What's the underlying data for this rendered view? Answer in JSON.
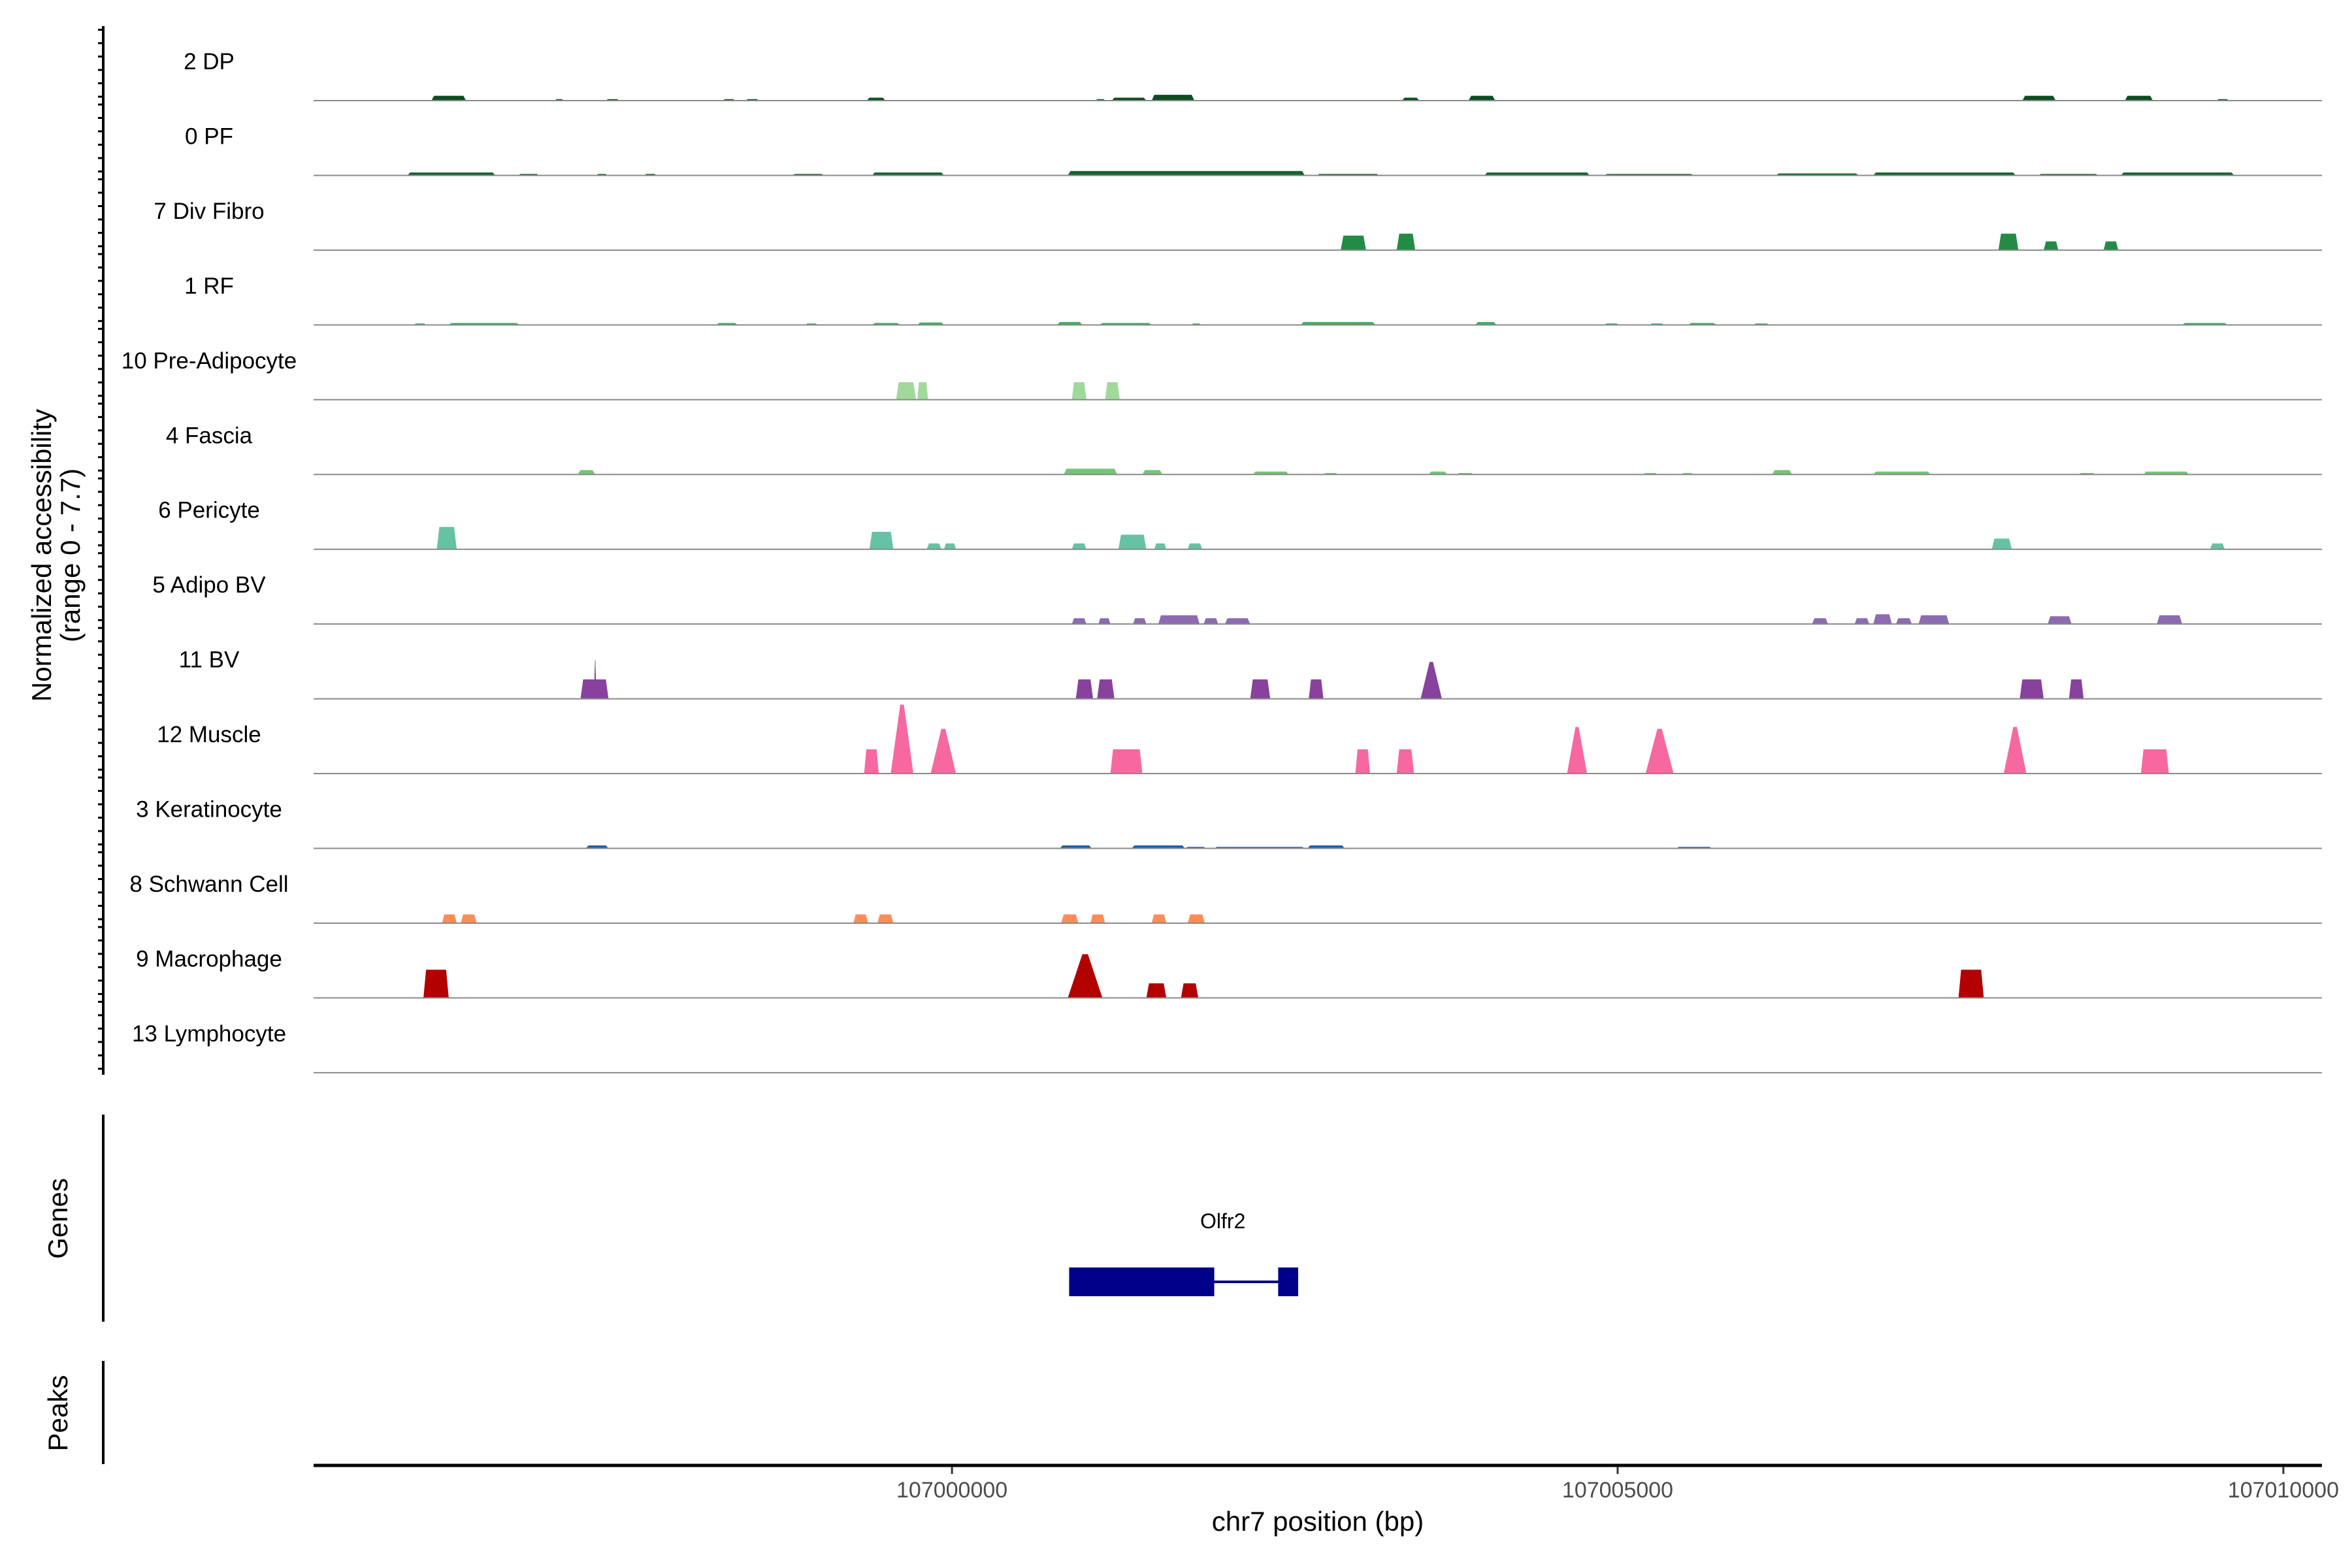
{
  "chart_data": {
    "type": "area",
    "title": "",
    "ylabel_line1": "Normalized accessibility",
    "ylabel_line2": "(range 0 - 7.7)",
    "xlabel": "chr7 position (bp)",
    "ylim": [
      0,
      7.7
    ],
    "xlim": [
      106995205,
      107010290
    ],
    "x_ticks": [
      107000000,
      107005000,
      107010000
    ],
    "x_tick_labels": [
      "107000000",
      "107005000",
      "107010000"
    ],
    "grid": false,
    "tracks": [
      {
        "name": "2 DP",
        "color": "#0b4d1f",
        "peaks": [
          [
            106996090,
            106996350,
            0.5
          ],
          [
            106997020,
            106997080,
            0.15
          ],
          [
            106997400,
            106997500,
            0.15
          ],
          [
            106998280,
            106998370,
            0.15
          ],
          [
            106998450,
            106998550,
            0.15
          ],
          [
            106999360,
            106999500,
            0.3
          ],
          [
            107001080,
            107001150,
            0.15
          ],
          [
            107001200,
            107001460,
            0.3
          ],
          [
            107001500,
            107001820,
            0.6
          ],
          [
            107003380,
            107003510,
            0.3
          ],
          [
            107003880,
            107004080,
            0.5
          ],
          [
            107008040,
            107008290,
            0.5
          ],
          [
            107008810,
            107009020,
            0.5
          ],
          [
            107009500,
            107009590,
            0.15
          ]
        ]
      },
      {
        "name": "0 PF",
        "color": "#17622c",
        "peaks": [
          [
            106995910,
            106996570,
            0.3
          ],
          [
            106996740,
            106996900,
            0.15
          ],
          [
            106997330,
            106997410,
            0.15
          ],
          [
            106997690,
            106997780,
            0.15
          ],
          [
            106998800,
            106999040,
            0.15
          ],
          [
            106999400,
            106999940,
            0.3
          ],
          [
            107000870,
            107002650,
            0.45
          ],
          [
            107002740,
            107003210,
            0.15
          ],
          [
            107004000,
            107004790,
            0.3
          ],
          [
            107004900,
            107005570,
            0.15
          ],
          [
            107006190,
            107006810,
            0.2
          ],
          [
            107006920,
            107007990,
            0.3
          ],
          [
            107008160,
            107008610,
            0.15
          ],
          [
            107008780,
            107009630,
            0.3
          ]
        ]
      },
      {
        "name": "7 Div Fibro",
        "color": "#238b45",
        "peaks": [
          [
            107002920,
            107003110,
            1.5
          ],
          [
            107003340,
            107003480,
            1.7
          ],
          [
            107007860,
            107008010,
            1.7
          ],
          [
            107008200,
            107008310,
            0.9
          ],
          [
            107008650,
            107008760,
            0.9
          ]
        ]
      },
      {
        "name": "1 RF",
        "color": "#41ab5d",
        "peaks": [
          [
            106995960,
            106996050,
            0.15
          ],
          [
            106996220,
            106996750,
            0.2
          ],
          [
            106998230,
            106998390,
            0.2
          ],
          [
            106998900,
            106998990,
            0.15
          ],
          [
            106999400,
            106999610,
            0.2
          ],
          [
            106999740,
            106999940,
            0.25
          ],
          [
            107000790,
            107000980,
            0.3
          ],
          [
            107001110,
            107001500,
            0.2
          ],
          [
            107001800,
            107001870,
            0.15
          ],
          [
            107002620,
            107003180,
            0.3
          ],
          [
            107003930,
            107004090,
            0.3
          ],
          [
            107004900,
            107005010,
            0.15
          ],
          [
            107005240,
            107005350,
            0.15
          ],
          [
            107005530,
            107005740,
            0.2
          ],
          [
            107006020,
            107006140,
            0.15
          ],
          [
            107009240,
            107009580,
            0.2
          ]
        ]
      },
      {
        "name": "10 Pre-Adipocyte",
        "color": "#a1d99b",
        "peaks": [
          [
            106999580,
            106999730,
            1.8
          ],
          [
            106999740,
            106999820,
            1.8
          ],
          [
            107000900,
            107001010,
            1.8
          ],
          [
            107001150,
            107001260,
            1.8
          ]
        ]
      },
      {
        "name": "4 Fascia",
        "color": "#74c476",
        "peaks": [
          [
            106997190,
            106997320,
            0.45
          ],
          [
            107000840,
            107001240,
            0.6
          ],
          [
            107001430,
            107001580,
            0.45
          ],
          [
            107002260,
            107002530,
            0.3
          ],
          [
            107002790,
            107002900,
            0.15
          ],
          [
            107003580,
            107003720,
            0.3
          ],
          [
            107003790,
            107003920,
            0.15
          ],
          [
            107005190,
            107005300,
            0.15
          ],
          [
            107005480,
            107005570,
            0.15
          ],
          [
            107006160,
            107006310,
            0.45
          ],
          [
            107006920,
            107007350,
            0.3
          ],
          [
            107008460,
            107008590,
            0.15
          ],
          [
            107008950,
            107009290,
            0.3
          ]
        ]
      },
      {
        "name": "6 Pericyte",
        "color": "#66c2a4",
        "peaks": [
          [
            106996130,
            106996280,
            2.3
          ],
          [
            106999380,
            106999560,
            1.8
          ],
          [
            106999810,
            106999920,
            0.6
          ],
          [
            106999940,
            107000030,
            0.6
          ],
          [
            107000900,
            107001010,
            0.6
          ],
          [
            107001250,
            107001460,
            1.5
          ],
          [
            107001520,
            107001610,
            0.6
          ],
          [
            107001770,
            107001880,
            0.6
          ],
          [
            107007810,
            107007960,
            1.1
          ],
          [
            107009450,
            107009560,
            0.6
          ]
        ]
      },
      {
        "name": "5 Adipo BV",
        "color": "#8c6bb1",
        "peaks": [
          [
            107000900,
            107001010,
            0.6
          ],
          [
            107001100,
            107001190,
            0.6
          ],
          [
            107001360,
            107001460,
            0.6
          ],
          [
            107001550,
            107001860,
            0.9
          ],
          [
            107001890,
            107002000,
            0.6
          ],
          [
            107002050,
            107002240,
            0.6
          ],
          [
            107006460,
            107006580,
            0.6
          ],
          [
            107006780,
            107006890,
            0.6
          ],
          [
            107006920,
            107007060,
            1.0
          ],
          [
            107007090,
            107007210,
            0.6
          ],
          [
            107007260,
            107007490,
            0.9
          ],
          [
            107008230,
            107008410,
            0.8
          ],
          [
            107009050,
            107009240,
            0.9
          ]
        ]
      },
      {
        "name": "11 BV",
        "color": "#88419d",
        "peaks": [
          [
            106997210,
            106997420,
            2.0
          ],
          [
            106997310,
            106997330,
            4.0
          ],
          [
            107000930,
            107001060,
            2.0
          ],
          [
            107001090,
            107001220,
            2.0
          ],
          [
            107002240,
            107002390,
            2.0
          ],
          [
            107002680,
            107002790,
            2.0
          ],
          [
            107003520,
            107003680,
            3.8
          ],
          [
            107008020,
            107008200,
            2.0
          ],
          [
            107008390,
            107008500,
            2.0
          ]
        ]
      },
      {
        "name": "12 Muscle",
        "color": "#f768a1",
        "peaks": [
          [
            106999340,
            106999450,
            2.5
          ],
          [
            106999540,
            106999710,
            7.1
          ],
          [
            106999840,
            107000030,
            4.6
          ],
          [
            107001190,
            107001430,
            2.5
          ],
          [
            107003030,
            107003140,
            2.5
          ],
          [
            107003340,
            107003470,
            2.5
          ],
          [
            107004620,
            107004770,
            4.8
          ],
          [
            107005210,
            107005420,
            4.6
          ],
          [
            107007900,
            107008070,
            4.8
          ],
          [
            107008930,
            107009140,
            2.5
          ]
        ]
      },
      {
        "name": "3 Keratinocyte",
        "color": "#225ea8",
        "peaks": [
          [
            106997250,
            106997420,
            0.3
          ],
          [
            107000810,
            107001050,
            0.3
          ],
          [
            107001350,
            107001750,
            0.3
          ],
          [
            107001750,
            107001910,
            0.15
          ],
          [
            107001970,
            107002650,
            0.15
          ],
          [
            107002670,
            107002950,
            0.3
          ],
          [
            107005440,
            107005710,
            0.15
          ]
        ]
      },
      {
        "name": "8 Schwann Cell",
        "color": "#fc8d59",
        "peaks": [
          [
            106996170,
            106996280,
            0.9
          ],
          [
            106996310,
            106996430,
            0.9
          ],
          [
            106999260,
            106999370,
            0.9
          ],
          [
            106999440,
            106999560,
            0.9
          ],
          [
            107000820,
            107000950,
            0.9
          ],
          [
            107001040,
            107001150,
            0.9
          ],
          [
            107001500,
            107001610,
            0.9
          ],
          [
            107001770,
            107001900,
            0.9
          ]
        ]
      },
      {
        "name": "9 Macrophage",
        "color": "#b30000",
        "peaks": [
          [
            106996030,
            106996220,
            2.9
          ],
          [
            107000870,
            107001130,
            4.5
          ],
          [
            107001460,
            107001610,
            1.5
          ],
          [
            107001720,
            107001850,
            1.5
          ],
          [
            107007560,
            107007750,
            2.9
          ]
        ]
      },
      {
        "name": "13 Lymphocyte",
        "color": "#e7298a",
        "peaks": []
      }
    ],
    "genes": [
      {
        "name": "Olfr2",
        "color": "#00008b",
        "exons": [
          [
            107000880,
            107001970
          ],
          [
            107002450,
            107002600
          ]
        ],
        "start": 107000880,
        "end": 107002600
      }
    ],
    "panel_labels": {
      "genes": "Genes",
      "peaks": "Peaks"
    }
  }
}
